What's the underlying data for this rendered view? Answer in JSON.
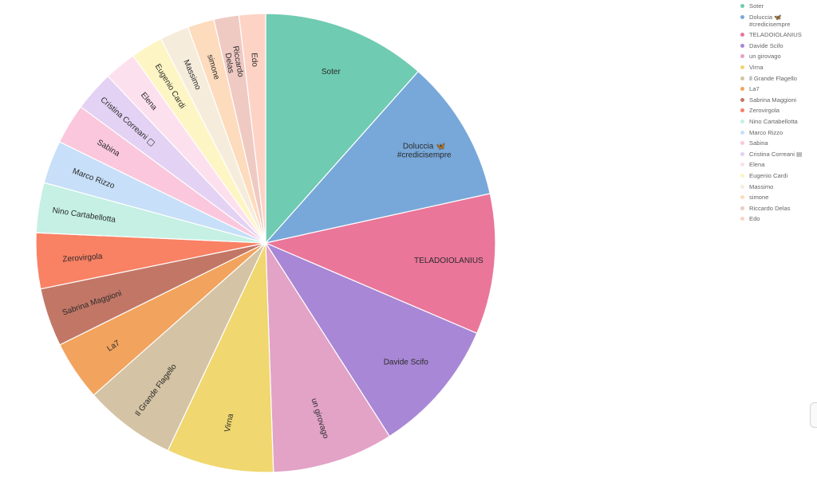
{
  "chart_data": {
    "type": "pie",
    "title": "",
    "start_angle_deg": -90,
    "series": [
      {
        "label": "Soter",
        "legend": "Soter",
        "value": 11.8,
        "color": "#6fcbb1"
      },
      {
        "label": "Doluccia 🦋\n#credicisempre",
        "legend": "Doluccia 🦋\n#credicisempre",
        "value": 10.2,
        "color": "#78a8d9"
      },
      {
        "label": "TELADOIOLANIUS",
        "legend": "TELADOIOLANIUS",
        "value": 10.1,
        "color": "#ea769a"
      },
      {
        "label": "Davide Scifo",
        "legend": "Davide Scifo",
        "value": 9.7,
        "color": "#a887d6"
      },
      {
        "label": "un girovago",
        "legend": "un girovago",
        "value": 8.7,
        "color": "#e2a3c7"
      },
      {
        "label": "Virna",
        "legend": "Virna",
        "value": 7.7,
        "color": "#f0d76f"
      },
      {
        "label": "Il Grande Flagello",
        "legend": "Il Grande Flagello",
        "value": 6.6,
        "color": "#d4c3a4"
      },
      {
        "label": "La7",
        "legend": "La7",
        "value": 4.3,
        "color": "#f2a35e"
      },
      {
        "label": "Sabrina Maggioni",
        "legend": "Sabrina Maggioni",
        "value": 4.2,
        "color": "#c27766"
      },
      {
        "label": "Zerovirgola",
        "legend": "Zerovirgola",
        "value": 4.0,
        "color": "#f98164"
      },
      {
        "label": "Nino Cartabellotta",
        "legend": "Nino Cartabellotta",
        "value": 3.6,
        "color": "#c5f0e3"
      },
      {
        "label": "Marco Rizzo",
        "legend": "Marco Rizzo",
        "value": 3.1,
        "color": "#c7dff8"
      },
      {
        "label": "Sabina",
        "legend": "Sabina",
        "value": 2.9,
        "color": "#fbc7dc"
      },
      {
        "label": "Cristina Correani ▢",
        "legend": "Cristina Correani ▤",
        "value": 2.9,
        "color": "#e3d2f3"
      },
      {
        "label": "Elena",
        "legend": "Elena",
        "value": 2.3,
        "color": "#fde0ee"
      },
      {
        "label": "Eugenio Cardi",
        "legend": "Eugenio Cardi",
        "value": 2.3,
        "color": "#fdf5c4"
      },
      {
        "label": "Massimo",
        "legend": "Massimo",
        "value": 2.1,
        "color": "#f5ecdc"
      },
      {
        "label": "simone",
        "legend": "simone",
        "value": 1.9,
        "color": "#fddbbd"
      },
      {
        "label": "Riccardo\nDelas",
        "legend": "Riccardo Delas",
        "value": 1.8,
        "color": "#efcac3"
      },
      {
        "label": "Edo",
        "legend": "Edo",
        "value": 1.9,
        "color": "#fdd3c6"
      }
    ]
  }
}
